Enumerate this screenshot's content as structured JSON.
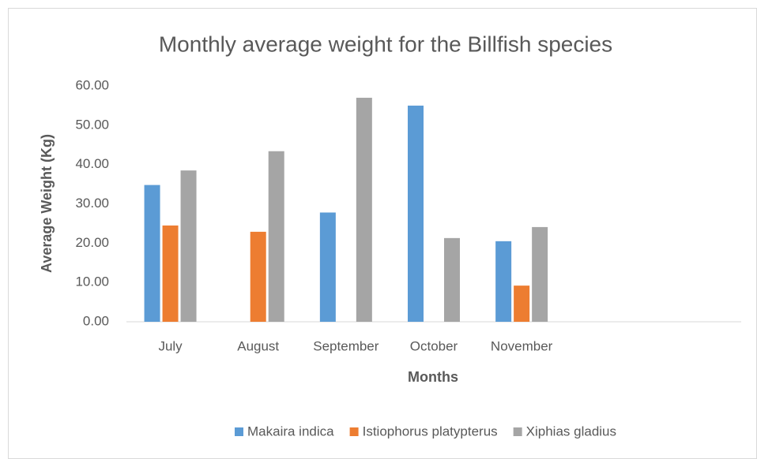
{
  "chart_data": {
    "type": "bar",
    "title": "Monthly average weight for the Billfish species",
    "x_label": "Months",
    "y_label": "Average Weight (Kg)",
    "categories": [
      "July",
      "August",
      "September",
      "October",
      "November",
      null,
      null
    ],
    "series": [
      {
        "name": "Makaira indica",
        "color": "#5b9bd5",
        "values": [
          34.8,
          null,
          27.8,
          55.0,
          20.5,
          null,
          null
        ]
      },
      {
        "name": "Istiophorus platypterus",
        "color": "#ed7d31",
        "values": [
          24.5,
          22.9,
          null,
          null,
          9.2,
          null,
          null
        ]
      },
      {
        "name": "Xiphias gladius",
        "color": "#a5a5a5",
        "values": [
          38.5,
          43.4,
          57.0,
          21.3,
          24.1,
          null,
          null
        ]
      }
    ],
    "ylim": [
      0,
      60
    ],
    "yticks": [
      {
        "value": 0,
        "label": "0.00"
      },
      {
        "value": 10,
        "label": "10.00"
      },
      {
        "value": 20,
        "label": "20.00"
      },
      {
        "value": 30,
        "label": "30.00"
      },
      {
        "value": 40,
        "label": "40.00"
      },
      {
        "value": 50,
        "label": "50.00"
      },
      {
        "value": 60,
        "label": "60.00"
      }
    ],
    "grid": false,
    "legend": "bottom"
  }
}
